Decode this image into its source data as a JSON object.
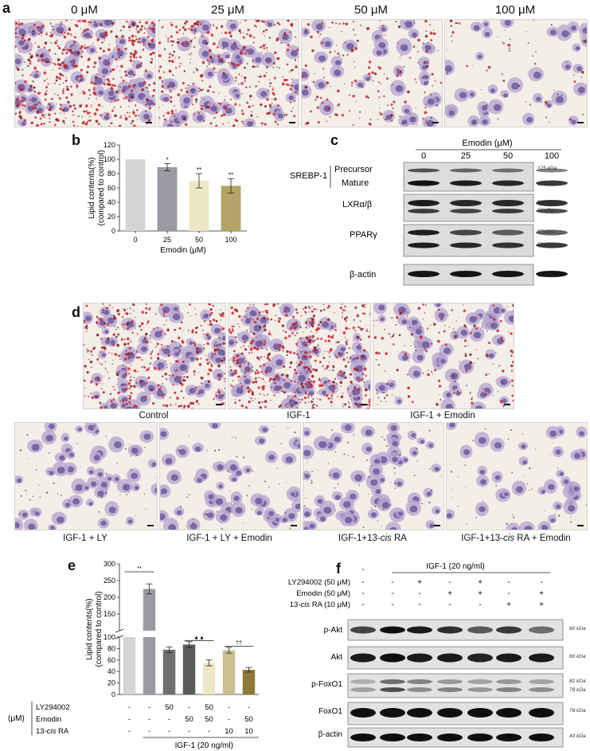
{
  "panel_a": {
    "letter": "a",
    "concentrations": [
      "0 μM",
      "25 μM",
      "50 μM",
      "100 μM"
    ]
  },
  "panel_b": {
    "letter": "b",
    "stars": [
      "*",
      "**",
      "**"
    ]
  },
  "panel_c": {
    "letter": "c",
    "treatment_label": "Emodin (μM)",
    "doses": [
      "0",
      "25",
      "50",
      "100"
    ],
    "group_label": "SREBP-1",
    "bands": [
      {
        "label": "Precursor",
        "kda": "125 kDa"
      },
      {
        "label": "Mature",
        "kda": "68 kDa"
      },
      {
        "label": "LXRα/β",
        "kda": "56 kDa",
        "kda2": "50 kDa"
      },
      {
        "label": "PPARγ",
        "kda": "57 kDa",
        "kda2": "53 kDa"
      },
      {
        "label": "β-actin",
        "kda": "43 kDa"
      }
    ]
  },
  "panel_d": {
    "letter": "d",
    "captions_row1": [
      "Control",
      "IGF-1",
      "IGF-1 + Emodin"
    ],
    "captions_row2": [
      "IGF-1 + LY",
      "IGF-1 + LY + Emodin",
      "IGF-1+13-",
      "RA",
      "IGF-1+13-",
      "RA + Emodin"
    ],
    "cis": "cis"
  },
  "panel_e": {
    "letter": "e",
    "unit": "(μM)",
    "row_labels": [
      "LY294002",
      "Emodin",
      "13-",
      "RA"
    ],
    "ly_row": [
      "-",
      "-",
      "50",
      "-",
      "50",
      "-",
      "-"
    ],
    "emodin_row": [
      "-",
      "-",
      "-",
      "50",
      "50",
      "-",
      "50"
    ],
    "ra_row": [
      "-",
      "-",
      "-",
      "-",
      "-",
      "10",
      "10"
    ],
    "footer": "IGF-1 (20 ng/ml)",
    "sig": [
      "**",
      "▲▲",
      "††"
    ]
  },
  "panel_f": {
    "letter": "f",
    "header": "IGF-1 (20 ng/ml)",
    "rows": [
      {
        "label": "LY294002 (50 μM)",
        "values": [
          "-",
          "-",
          "+",
          "-",
          "+",
          "-",
          "-"
        ]
      },
      {
        "label": "Emodin (50 μM)",
        "values": [
          "-",
          "-",
          "-",
          "+",
          "+",
          "-",
          "+"
        ]
      },
      {
        "label_pre": "13-",
        "label_it": "cis",
        "label_post": " RA (10 μM)",
        "values": [
          "-",
          "-",
          "-",
          "-",
          "-",
          "+",
          "+"
        ]
      }
    ],
    "bands": [
      {
        "label": "p-Akt",
        "kda": "60 kDa"
      },
      {
        "label": "Akt",
        "kda": "60 kDa"
      },
      {
        "label": "p-FoxO1",
        "kda": "82 kDa",
        "kda2": "78 kDa"
      },
      {
        "label": "FoxO1",
        "kda": "78 kDa"
      },
      {
        "label": "β-actin",
        "kda": "43 kDa"
      }
    ]
  },
  "chart_data": [
    {
      "type": "bar",
      "panel": "b",
      "categories": [
        "0",
        "25",
        "50",
        "100"
      ],
      "values": [
        100,
        89,
        70,
        63
      ],
      "errors": [
        0,
        5,
        10,
        10
      ],
      "colors": [
        "#d4d4d4",
        "#9a9aa3",
        "#ece7c4",
        "#b3a46a"
      ],
      "xlabel": "Emodin (μM)",
      "ylabel": "Lipid contents(%)\n(compared to control)",
      "ylim": [
        0,
        120
      ],
      "yticks": [
        0,
        20,
        40,
        60,
        80,
        100,
        120
      ]
    },
    {
      "type": "bar",
      "panel": "e",
      "categories": [
        "1",
        "2",
        "3",
        "4",
        "5",
        "6",
        "7"
      ],
      "values": [
        100,
        225,
        78,
        87,
        55,
        77,
        43
      ],
      "errors": [
        0,
        15,
        5,
        5,
        5,
        5,
        4
      ],
      "colors": [
        "#d4d4d4",
        "#9a9aa3",
        "#6f6f6f",
        "#5b5b5b",
        "#ece7c4",
        "#ccc08e",
        "#8c7a3a"
      ],
      "ylabel": "Lipid contents(%)\n(compared to control)",
      "broken_axis": true,
      "ylim_lower": [
        0,
        100
      ],
      "ylim_upper": [
        100,
        300
      ],
      "yticks_lower": [
        0,
        20,
        40,
        60,
        80,
        100
      ],
      "yticks_upper": [
        150,
        200,
        250,
        300
      ]
    }
  ]
}
